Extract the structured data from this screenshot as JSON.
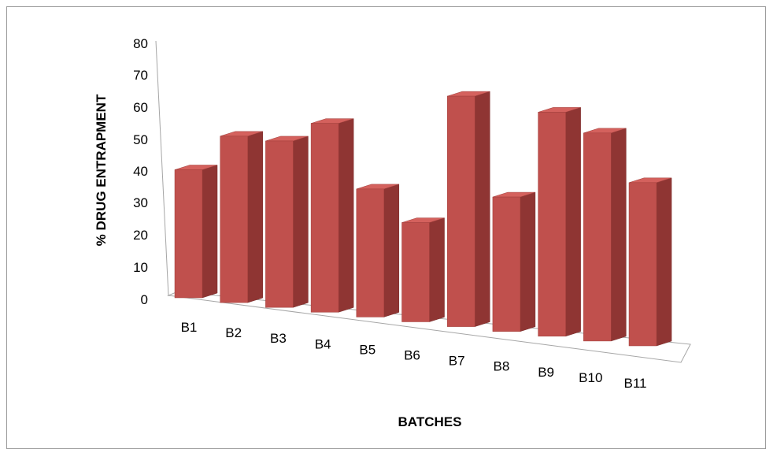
{
  "chart_data": {
    "type": "bar",
    "style": "3d-column",
    "categories": [
      "B1",
      "B2",
      "B3",
      "B4",
      "B5",
      "B6",
      "B7",
      "B8",
      "B9",
      "B10",
      "B11"
    ],
    "values": [
      40,
      52,
      52,
      59,
      40,
      31,
      72,
      42,
      70,
      65,
      51
    ],
    "xlabel": "BATCHES",
    "ylabel": "% DRUG  ENTRAPMENT",
    "ylim": [
      0,
      80
    ],
    "yticks": [
      "0",
      "10",
      "20",
      "30",
      "40",
      "50",
      "60",
      "70",
      "80"
    ],
    "grid": false,
    "bar_color": "#c0504d"
  }
}
